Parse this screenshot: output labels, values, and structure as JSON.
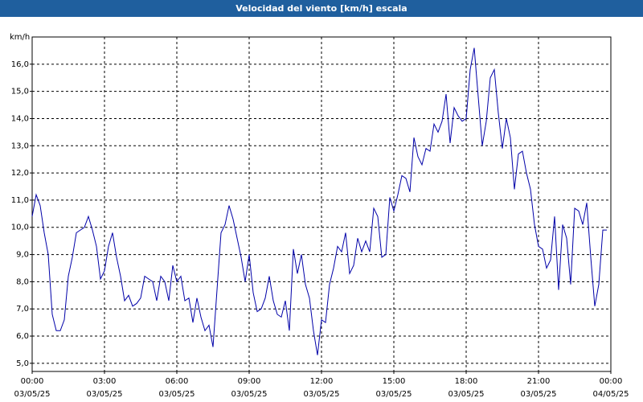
{
  "chart_data": {
    "type": "line",
    "title": "Velocidad del viento [km/h] escala",
    "y_label": "km/h",
    "x": [
      0,
      10,
      20,
      30,
      40,
      50,
      60,
      70,
      80,
      90,
      100,
      110,
      120,
      130,
      140,
      150,
      160,
      170,
      180,
      190,
      200,
      210,
      220,
      230,
      240,
      250,
      260,
      270,
      280,
      290,
      300,
      310,
      320,
      330,
      340,
      350,
      360,
      370,
      380,
      390,
      400,
      410,
      420,
      430,
      440,
      450,
      460,
      470,
      480,
      490,
      500,
      510,
      520,
      530,
      540,
      550,
      560,
      570,
      580,
      590,
      600,
      610,
      620,
      630,
      640,
      650,
      660,
      670,
      680,
      690,
      700,
      710,
      720,
      730,
      740,
      750,
      760,
      770,
      780,
      790,
      800,
      810,
      820,
      830,
      840,
      850,
      860,
      870,
      880,
      890,
      900,
      910,
      920,
      930,
      940,
      950,
      960,
      970,
      980,
      990,
      1000,
      1010,
      1020,
      1030,
      1040,
      1050,
      1060,
      1070,
      1080,
      1090,
      1100,
      1110,
      1120,
      1130,
      1140,
      1150,
      1160,
      1170,
      1180,
      1190,
      1200,
      1210,
      1220,
      1230,
      1240,
      1250,
      1260,
      1270,
      1280,
      1290,
      1300,
      1310,
      1320,
      1330,
      1340,
      1350,
      1360,
      1370,
      1380,
      1390,
      1400,
      1410,
      1420,
      1430
    ],
    "series": [
      {
        "color": "#0000a8",
        "values": [
          10.4,
          11.2,
          10.8,
          9.8,
          9.0,
          6.8,
          6.2,
          6.2,
          6.6,
          8.2,
          8.9,
          9.8,
          9.9,
          10.0,
          10.4,
          9.9,
          9.3,
          8.1,
          8.4,
          9.3,
          9.8,
          8.9,
          8.2,
          7.3,
          7.5,
          7.1,
          7.2,
          7.4,
          8.2,
          8.1,
          8.0,
          7.3,
          8.2,
          8.0,
          7.3,
          8.6,
          8.0,
          8.2,
          7.3,
          7.4,
          6.5,
          7.4,
          6.7,
          6.2,
          6.4,
          5.6,
          7.7,
          9.8,
          10.1,
          10.8,
          10.3,
          9.6,
          8.9,
          8.0,
          9.0,
          7.6,
          6.9,
          7.0,
          7.4,
          8.2,
          7.3,
          6.8,
          6.7,
          7.3,
          6.2,
          9.2,
          8.3,
          9.0,
          7.9,
          7.4,
          6.2,
          5.3,
          6.6,
          6.5,
          7.9,
          8.5,
          9.3,
          9.1,
          9.8,
          8.3,
          8.6,
          9.6,
          9.1,
          9.5,
          9.1,
          10.7,
          10.4,
          8.9,
          9.0,
          11.1,
          10.6,
          11.2,
          11.9,
          11.8,
          11.3,
          13.3,
          12.6,
          12.3,
          12.9,
          12.8,
          13.8,
          13.5,
          13.9,
          14.9,
          13.1,
          14.4,
          14.1,
          13.9,
          14.0,
          15.8,
          16.6,
          14.8,
          13.0,
          13.9,
          15.5,
          15.8,
          14.2,
          12.9,
          14.0,
          13.3,
          11.4,
          12.7,
          12.8,
          12.0,
          11.4,
          10.1,
          9.3,
          9.2,
          8.5,
          8.8,
          10.4,
          7.7,
          10.1,
          9.6,
          7.9,
          10.7,
          10.6,
          10.1,
          10.9,
          8.9,
          7.1,
          7.9,
          9.9,
          9.9
        ]
      }
    ],
    "xlim": [
      0,
      1440
    ],
    "xticks": [
      {
        "value": 0,
        "label": "00:00",
        "date": "03/05/25"
      },
      {
        "value": 180,
        "label": "03:00",
        "date": "03/05/25"
      },
      {
        "value": 360,
        "label": "06:00",
        "date": "03/05/25"
      },
      {
        "value": 540,
        "label": "09:00",
        "date": "03/05/25"
      },
      {
        "value": 720,
        "label": "12:00",
        "date": "03/05/25"
      },
      {
        "value": 900,
        "label": "15:00",
        "date": "03/05/25"
      },
      {
        "value": 1080,
        "label": "18:00",
        "date": "03/05/25"
      },
      {
        "value": 1260,
        "label": "21:00",
        "date": "03/05/25"
      },
      {
        "value": 1440,
        "label": "00:00",
        "date": "04/05/25"
      }
    ],
    "ylim": [
      4.7,
      17.0
    ],
    "yticks": [
      {
        "value": 5,
        "label": "5,0"
      },
      {
        "value": 6,
        "label": "6,0"
      },
      {
        "value": 7,
        "label": "7,0"
      },
      {
        "value": 8,
        "label": "8,0"
      },
      {
        "value": 9,
        "label": "9,0"
      },
      {
        "value": 10,
        "label": "10,0"
      },
      {
        "value": 11,
        "label": "11,0"
      },
      {
        "value": 12,
        "label": "12,0"
      },
      {
        "value": 13,
        "label": "13,0"
      },
      {
        "value": 14,
        "label": "14,0"
      },
      {
        "value": 15,
        "label": "15,0"
      },
      {
        "value": 16,
        "label": "16,0"
      }
    ],
    "grid": true
  }
}
